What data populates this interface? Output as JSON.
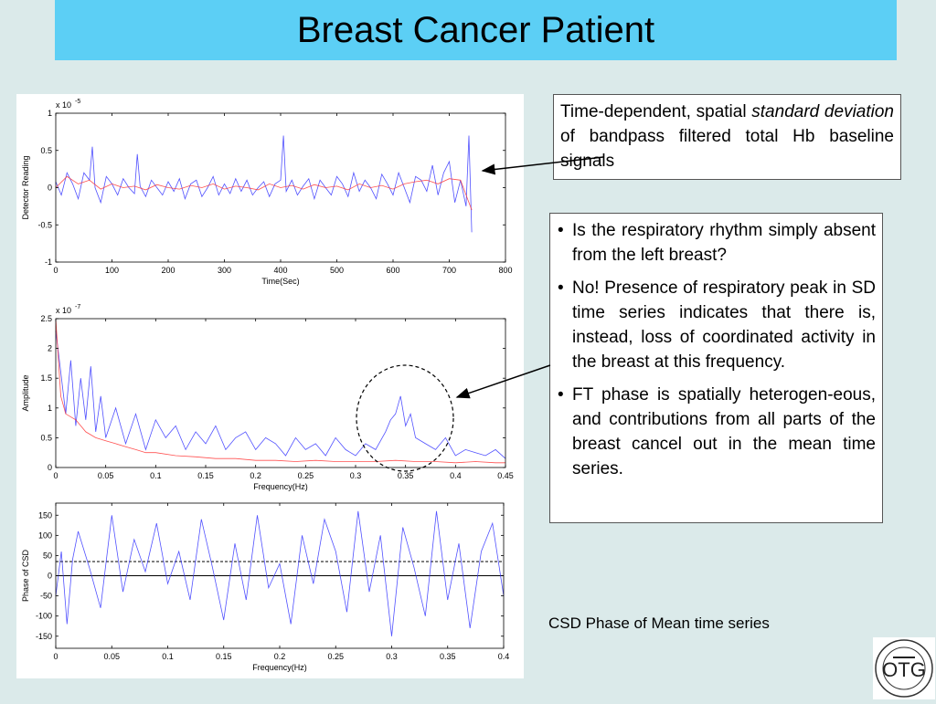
{
  "title": "Breast Cancer Patient",
  "text_box_1": {
    "part1": "Time-dependent, spatial ",
    "emphasis": "standard deviation",
    "part2": " of bandpass filtered total Hb baseline signals"
  },
  "text_box_2": {
    "bullets": [
      "Is the respiratory rhythm simply absent from the left breast?",
      "No!  Presence of respiratory peak in SD time series indicates that there is, instead, loss of coordinated activity in the breast at this frequency.",
      "FT phase is spatially heterogen-eous, and contributions from all parts of the breast cancel out in the mean time series."
    ]
  },
  "caption": "CSD Phase of Mean time series",
  "logo": {
    "text": "OTG",
    "ring_text": "OPTICAL TOMOGRAPHY GROUP · SUNY DOWNSTATE MEDICAL CENTER"
  },
  "colors": {
    "title_bar": "#5ccff5",
    "background": "#dbeaea",
    "blue_series": "#3333ff",
    "red_series": "#ff3333"
  },
  "chart_data": [
    {
      "type": "line",
      "xlabel": "Time(Sec)",
      "ylabel": "Detector Reading",
      "exponent": "x 10",
      "exponent_power": "-5",
      "xlim": [
        0,
        800
      ],
      "ylim": [
        -1,
        1
      ],
      "xticks": [
        "0",
        "100",
        "200",
        "300",
        "400",
        "500",
        "600",
        "700",
        "800"
      ],
      "yticks": [
        "-1",
        "-0.5",
        "0",
        "0.5",
        "1"
      ],
      "series": [
        {
          "color": "blue",
          "x": [
            0,
            10,
            20,
            30,
            40,
            50,
            60,
            65,
            70,
            80,
            90,
            100,
            110,
            120,
            130,
            140,
            145,
            150,
            160,
            170,
            180,
            190,
            200,
            210,
            220,
            230,
            240,
            250,
            260,
            270,
            280,
            290,
            300,
            310,
            320,
            330,
            340,
            350,
            360,
            370,
            380,
            390,
            400,
            405,
            410,
            420,
            430,
            440,
            450,
            460,
            470,
            480,
            490,
            500,
            510,
            520,
            530,
            540,
            550,
            560,
            570,
            580,
            590,
            600,
            610,
            620,
            630,
            640,
            650,
            660,
            670,
            680,
            690,
            700,
            710,
            720,
            730,
            735,
            740
          ],
          "y": [
            0.08,
            -0.1,
            0.2,
            0.05,
            -0.15,
            0.2,
            0.1,
            0.55,
            0.0,
            -0.2,
            0.15,
            0.05,
            -0.1,
            0.12,
            0.0,
            -0.08,
            0.45,
            0.02,
            -0.12,
            0.1,
            0.0,
            -0.1,
            0.08,
            -0.05,
            0.12,
            -0.15,
            0.05,
            0.1,
            -0.12,
            0.0,
            0.15,
            -0.1,
            0.05,
            -0.08,
            0.12,
            -0.05,
            0.1,
            -0.1,
            0.0,
            0.08,
            -0.12,
            0.05,
            0.1,
            0.7,
            -0.05,
            0.1,
            -0.1,
            0.02,
            0.12,
            -0.15,
            0.1,
            0.0,
            -0.1,
            0.15,
            0.05,
            -0.12,
            0.2,
            -0.05,
            0.1,
            0.0,
            -0.15,
            0.18,
            0.05,
            -0.1,
            0.2,
            0.0,
            -0.2,
            0.15,
            0.1,
            -0.05,
            0.3,
            -0.1,
            0.2,
            0.35,
            -0.2,
            0.1,
            -0.25,
            0.7,
            -0.6
          ]
        },
        {
          "color": "red",
          "x": [
            0,
            20,
            40,
            60,
            80,
            100,
            120,
            140,
            160,
            180,
            200,
            220,
            240,
            260,
            280,
            300,
            320,
            340,
            360,
            380,
            400,
            420,
            440,
            460,
            480,
            500,
            520,
            540,
            560,
            580,
            600,
            620,
            640,
            660,
            680,
            700,
            720,
            740
          ],
          "y": [
            0.0,
            0.15,
            0.05,
            0.1,
            -0.02,
            0.05,
            0.0,
            0.02,
            -0.03,
            0.04,
            0.0,
            -0.02,
            0.03,
            0.0,
            0.05,
            -0.02,
            0.02,
            0.0,
            -0.03,
            0.05,
            0.0,
            0.03,
            -0.02,
            0.04,
            0.0,
            0.02,
            -0.03,
            0.05,
            0.0,
            0.03,
            -0.02,
            0.05,
            0.08,
            0.1,
            0.05,
            0.12,
            0.1,
            -0.3
          ]
        }
      ]
    },
    {
      "type": "line",
      "xlabel": "Frequency(Hz)",
      "ylabel": "Amplitude",
      "exponent": "x 10",
      "exponent_power": "-7",
      "xlim": [
        0,
        0.45
      ],
      "ylim": [
        0,
        2.5
      ],
      "xticks": [
        "0",
        "0.05",
        "0.1",
        "0.15",
        "0.2",
        "0.25",
        "0.3",
        "0.35",
        "0.4",
        "0.45"
      ],
      "yticks": [
        "0",
        "0.5",
        "1",
        "1.5",
        "2",
        "2.5"
      ],
      "series": [
        {
          "color": "blue",
          "x": [
            0,
            0.005,
            0.01,
            0.015,
            0.02,
            0.025,
            0.03,
            0.035,
            0.04,
            0.045,
            0.05,
            0.06,
            0.07,
            0.08,
            0.09,
            0.1,
            0.11,
            0.12,
            0.13,
            0.14,
            0.15,
            0.16,
            0.17,
            0.18,
            0.19,
            0.2,
            0.21,
            0.22,
            0.23,
            0.24,
            0.25,
            0.26,
            0.27,
            0.28,
            0.29,
            0.3,
            0.31,
            0.32,
            0.33,
            0.335,
            0.34,
            0.345,
            0.35,
            0.355,
            0.36,
            0.37,
            0.38,
            0.39,
            0.4,
            0.41,
            0.42,
            0.43,
            0.44,
            0.45
          ],
          "y": [
            2.3,
            1.6,
            0.9,
            1.8,
            0.7,
            1.5,
            0.8,
            1.7,
            0.6,
            1.2,
            0.5,
            1.0,
            0.4,
            0.9,
            0.3,
            0.8,
            0.5,
            0.7,
            0.3,
            0.6,
            0.4,
            0.7,
            0.3,
            0.5,
            0.6,
            0.3,
            0.5,
            0.4,
            0.2,
            0.5,
            0.3,
            0.4,
            0.2,
            0.5,
            0.3,
            0.2,
            0.4,
            0.3,
            0.6,
            0.8,
            0.9,
            1.2,
            0.7,
            0.9,
            0.5,
            0.4,
            0.3,
            0.5,
            0.2,
            0.3,
            0.25,
            0.2,
            0.3,
            0.15
          ]
        },
        {
          "color": "red",
          "x": [
            0,
            0.005,
            0.01,
            0.02,
            0.03,
            0.04,
            0.05,
            0.06,
            0.07,
            0.08,
            0.09,
            0.1,
            0.12,
            0.14,
            0.16,
            0.18,
            0.2,
            0.22,
            0.24,
            0.26,
            0.28,
            0.3,
            0.32,
            0.34,
            0.36,
            0.38,
            0.4,
            0.42,
            0.44,
            0.45
          ],
          "y": [
            2.5,
            1.2,
            0.9,
            0.8,
            0.6,
            0.5,
            0.45,
            0.4,
            0.35,
            0.3,
            0.25,
            0.25,
            0.2,
            0.18,
            0.15,
            0.15,
            0.12,
            0.12,
            0.1,
            0.12,
            0.1,
            0.1,
            0.1,
            0.12,
            0.1,
            0.1,
            0.08,
            0.1,
            0.08,
            0.08
          ]
        }
      ]
    },
    {
      "type": "line",
      "xlabel": "Frequency(Hz)",
      "ylabel": "Phase of CSD",
      "xlim": [
        0,
        0.4
      ],
      "ylim": [
        -180,
        180
      ],
      "xticks": [
        "0",
        "0.05",
        "0.1",
        "0.15",
        "0.2",
        "0.25",
        "0.3",
        "0.35",
        "0.4"
      ],
      "yticks": [
        "-150",
        "-100",
        "-50",
        "0",
        "50",
        "100",
        "150"
      ],
      "reference_lines": {
        "solid": 0,
        "dashed": 35
      },
      "series": [
        {
          "color": "blue",
          "x": [
            0,
            0.005,
            0.01,
            0.015,
            0.02,
            0.03,
            0.04,
            0.05,
            0.06,
            0.07,
            0.08,
            0.09,
            0.1,
            0.11,
            0.12,
            0.13,
            0.14,
            0.15,
            0.16,
            0.17,
            0.18,
            0.19,
            0.2,
            0.21,
            0.22,
            0.23,
            0.24,
            0.25,
            0.26,
            0.27,
            0.28,
            0.29,
            0.3,
            0.31,
            0.32,
            0.33,
            0.34,
            0.35,
            0.36,
            0.37,
            0.38,
            0.39,
            0.4
          ],
          "y": [
            -50,
            60,
            -120,
            40,
            110,
            20,
            -80,
            150,
            -40,
            90,
            10,
            130,
            -20,
            60,
            -60,
            140,
            20,
            -110,
            80,
            -60,
            150,
            -30,
            30,
            -120,
            100,
            -20,
            140,
            60,
            -90,
            160,
            -40,
            100,
            -150,
            120,
            20,
            -100,
            160,
            -60,
            80,
            -130,
            60,
            130,
            -50
          ]
        }
      ]
    }
  ]
}
